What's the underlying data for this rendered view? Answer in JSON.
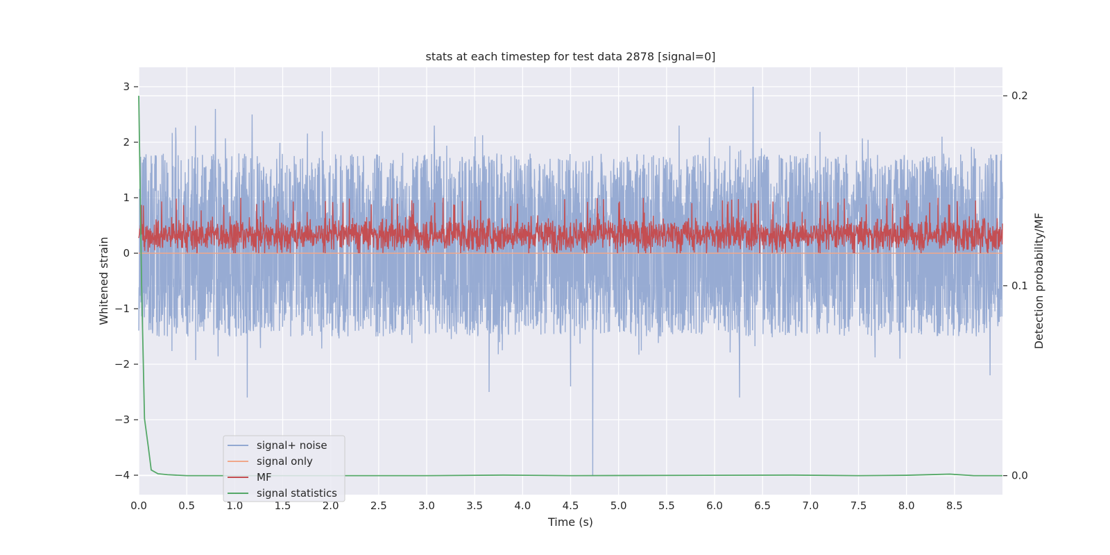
{
  "chart_data": {
    "type": "line",
    "title": "stats at each timestep for test data 2878 [signal=0]",
    "xlabel": "Time (s)",
    "ylabel": "Whitened strain",
    "y2label": "Detection probability/MF",
    "xlim": [
      0.0,
      9.0
    ],
    "ylim": [
      -4.35,
      3.35
    ],
    "y2lim": [
      -0.01,
      0.215
    ],
    "x_ticks": [
      0.0,
      0.5,
      1.0,
      1.5,
      2.0,
      2.5,
      3.0,
      3.5,
      4.0,
      4.5,
      5.0,
      5.5,
      6.0,
      6.5,
      7.0,
      7.5,
      8.0,
      8.5
    ],
    "x_tick_labels": [
      "0.0",
      "0.5",
      "1.0",
      "1.5",
      "2.0",
      "2.5",
      "3.0",
      "3.5",
      "4.0",
      "4.5",
      "5.0",
      "5.5",
      "6.0",
      "6.5",
      "7.0",
      "7.5",
      "8.0",
      "8.5"
    ],
    "y_ticks": [
      3,
      2,
      1,
      0,
      -1,
      -2,
      -3,
      -4
    ],
    "y_tick_labels": [
      "3",
      "2",
      "1",
      "0",
      "−1",
      "−2",
      "−3",
      "−4"
    ],
    "y2_ticks": [
      0.2,
      0.1,
      0.0
    ],
    "y2_tick_labels": [
      "0.2",
      "0.1",
      "0.0"
    ],
    "grid": true,
    "legend_position": "lower-left",
    "legend": [
      {
        "label": "signal+ noise",
        "color": "#92a8d1"
      },
      {
        "label": "signal only",
        "color": "#f0a78a"
      },
      {
        "label": "MF",
        "color": "#c44e52"
      },
      {
        "label": "signal statistics",
        "color": "#55a868"
      }
    ],
    "series": [
      {
        "name": "signal+ noise",
        "axis": "left",
        "kind": "noise",
        "color": "#92a8d1",
        "mean": -0.3,
        "typical_range": [
          -1.5,
          1.8
        ],
        "spikes": [
          {
            "x": 0.8,
            "y": 2.6
          },
          {
            "x": 1.18,
            "y": 2.5
          },
          {
            "x": 1.13,
            "y": -2.6
          },
          {
            "x": 3.08,
            "y": 2.3
          },
          {
            "x": 3.65,
            "y": -2.5
          },
          {
            "x": 4.5,
            "y": -2.4
          },
          {
            "x": 4.73,
            "y": -4.0
          },
          {
            "x": 5.63,
            "y": 2.3
          },
          {
            "x": 6.26,
            "y": -2.6
          },
          {
            "x": 6.4,
            "y": 3.0
          },
          {
            "x": 8.37,
            "y": 2.1
          },
          {
            "x": 8.87,
            "y": -2.2
          }
        ]
      },
      {
        "name": "signal only",
        "axis": "left",
        "kind": "flat",
        "color": "#f0a78a",
        "x": [
          0.0,
          9.0
        ],
        "y": [
          0.0,
          0.0
        ]
      },
      {
        "name": "MF",
        "axis": "left",
        "kind": "noise",
        "color": "#c44e52",
        "mean": 0.33,
        "typical_range": [
          0.0,
          0.9
        ],
        "peak": 1.0
      },
      {
        "name": "signal statistics",
        "axis": "right",
        "kind": "line",
        "color": "#55a868",
        "x": [
          0.0,
          0.03,
          0.06,
          0.1,
          0.13,
          0.2,
          0.3,
          0.5,
          1.0,
          3.0,
          3.8,
          4.5,
          6.8,
          7.5,
          8.0,
          8.45,
          8.7,
          9.0
        ],
        "y": [
          0.2,
          0.1,
          0.03,
          0.015,
          0.003,
          0.001,
          0.0005,
          0.0,
          0.0,
          0.0,
          0.0003,
          0.0,
          0.0003,
          0.0,
          0.0002,
          0.0008,
          0.0,
          0.0
        ]
      }
    ]
  }
}
